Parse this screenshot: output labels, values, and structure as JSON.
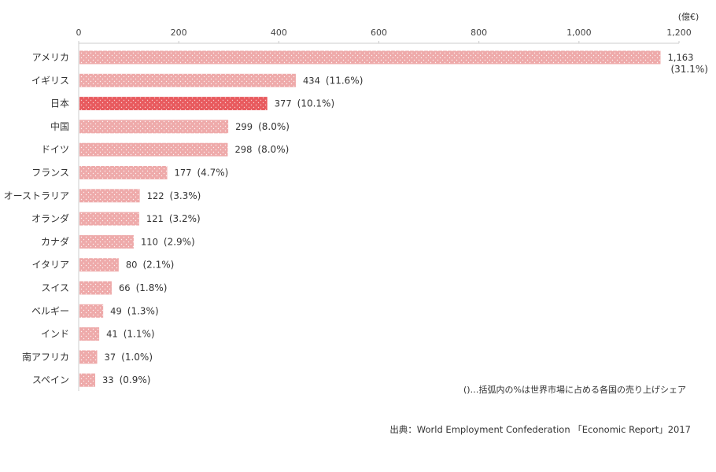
{
  "chart_data": {
    "type": "bar",
    "orientation": "horizontal",
    "unit": "(億€)",
    "xlim": [
      0,
      1200
    ],
    "x_ticks": [
      "0",
      "200",
      "400",
      "600",
      "800",
      "1,000",
      "1,200"
    ],
    "categories": [
      "アメリカ",
      "イギリス",
      "日本",
      "中国",
      "ドイツ",
      "フランス",
      "オーストラリア",
      "オランダ",
      "カナダ",
      "イタリア",
      "スイス",
      "ベルギー",
      "インド",
      "南アフリカ",
      "スペイン"
    ],
    "values": [
      1163,
      434,
      377,
      299,
      298,
      177,
      122,
      121,
      110,
      80,
      66,
      49,
      41,
      37,
      33
    ],
    "value_labels": [
      "1,163",
      "434",
      "377",
      "299",
      "298",
      "177",
      "122",
      "121",
      "110",
      "80",
      "66",
      "49",
      "41",
      "37",
      "33"
    ],
    "share_labels": [
      "(31.1%)",
      "(11.6%)",
      "(10.1%)",
      "(8.0%)",
      "(8.0%)",
      "(4.7%)",
      "(3.3%)",
      "(3.2%)",
      "(2.9%)",
      "(2.1%)",
      "(1.8%)",
      "(1.3%)",
      "(1.1%)",
      "(1.0%)",
      "(0.9%)"
    ],
    "highlight_category": "日本",
    "bar_color": "#eeaaaa",
    "highlight_color": "#e85a5e",
    "grid": false,
    "note": "()…括弧内の%は世界市場に占める各国の売り上げシェア",
    "source": "出典：World Employment Confederation 「Economic Report」2017"
  }
}
